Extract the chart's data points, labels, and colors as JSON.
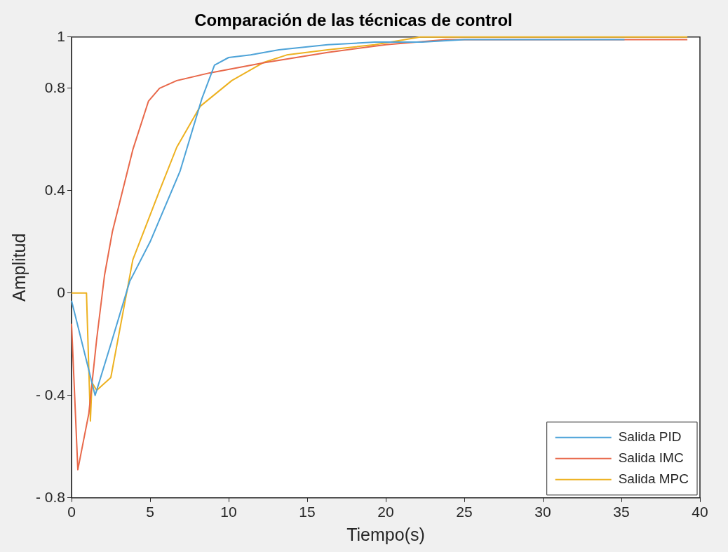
{
  "chart_data": {
    "type": "line",
    "title": "Comparación de las técnicas de control",
    "xlabel": "Tiempo(s)",
    "ylabel": "Amplitud",
    "xlim": [
      0,
      40
    ],
    "xticks": [
      0,
      5,
      10,
      15,
      20,
      25,
      30,
      35,
      40
    ],
    "ylim": [
      -0.8,
      1
    ],
    "yticks": [
      1,
      0.8,
      0.4,
      0,
      {
        "value": -0.4,
        "label": "- 0.4"
      },
      {
        "value": -0.8,
        "label": "- 0.8"
      }
    ],
    "grid": false,
    "legend": "bottom right",
    "marker": "none",
    "line_style": "solid",
    "series": [
      {
        "name": "Salida PID",
        "color": "#4ea3d8",
        "x": [
          0,
          1.5,
          2.5,
          3.7,
          5,
          6.9,
          8.3,
          9.1,
          10,
          11.4,
          13.2,
          16.3,
          19.3,
          22.3,
          25,
          27.3,
          35.2
        ],
        "values": [
          -0.03,
          -0.4,
          -0.2,
          0.045,
          0.2,
          0.475,
          0.76,
          0.89,
          0.92,
          0.93,
          0.95,
          0.97,
          0.98,
          0.98,
          0.99,
          0.99,
          0.99
        ]
      },
      {
        "name": "Salida IMC",
        "color": "#e8684a",
        "x": [
          0,
          0.4,
          1.1,
          1.6,
          2.1,
          2.6,
          3.9,
          4.9,
          5.6,
          6.7,
          8.8,
          12.3,
          16.3,
          20,
          23.8,
          25,
          39.2
        ],
        "values": [
          -0.12,
          -0.69,
          -0.47,
          -0.18,
          0.07,
          0.24,
          0.56,
          0.75,
          0.8,
          0.83,
          0.86,
          0.9,
          0.94,
          0.97,
          0.99,
          0.99,
          0.99
        ]
      },
      {
        "name": "Salida MPC",
        "color": "#edb120",
        "x": [
          0,
          0.95,
          1.2,
          1.3,
          1.6,
          2.5,
          3.9,
          5.6,
          6.7,
          8.2,
          10.2,
          12.2,
          13.7,
          16.3,
          19.3,
          22.2,
          39.2
        ],
        "values": [
          0,
          0,
          -0.5,
          -0.35,
          -0.38,
          -0.33,
          0.13,
          0.4,
          0.57,
          0.73,
          0.83,
          0.9,
          0.93,
          0.95,
          0.97,
          1,
          1
        ]
      }
    ]
  }
}
